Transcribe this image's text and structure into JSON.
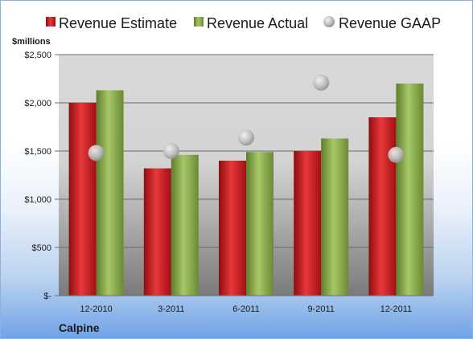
{
  "chart_data": {
    "type": "bar",
    "unit_label": "$millions",
    "company": "Calpine",
    "categories": [
      "12-2010",
      "3-2011",
      "6-2011",
      "9-2011",
      "12-2011"
    ],
    "series": [
      {
        "name": "Revenue Estimate",
        "kind": "bar",
        "color": "#d0161d",
        "values": [
          2000,
          1320,
          1400,
          1500,
          1850
        ]
      },
      {
        "name": "Revenue Actual",
        "kind": "bar",
        "color": "#8db04a",
        "values": [
          2130,
          1460,
          1490,
          1630,
          2200
        ]
      },
      {
        "name": "Revenue GAAP",
        "kind": "scatter",
        "color": "#b4b4b4",
        "values": [
          1480,
          1500,
          1640,
          2210,
          1460
        ]
      }
    ],
    "yticks": [
      {
        "value": 0,
        "label": "$-"
      },
      {
        "value": 500,
        "label": "$500"
      },
      {
        "value": 1000,
        "label": "$1,000"
      },
      {
        "value": 1500,
        "label": "$1,500"
      },
      {
        "value": 2000,
        "label": "$2,000"
      },
      {
        "value": 2500,
        "label": "$2,500"
      }
    ],
    "ylim": [
      0,
      2500
    ],
    "grid": true,
    "legend_position": "top"
  }
}
